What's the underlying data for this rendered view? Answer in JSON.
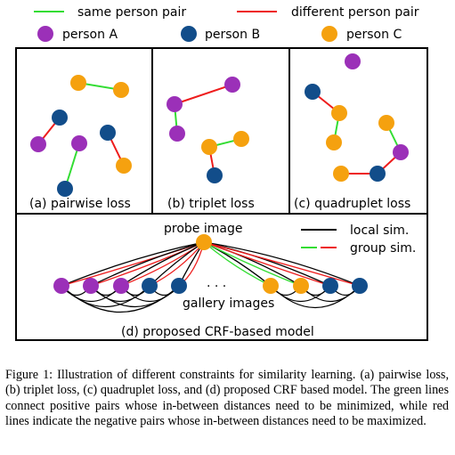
{
  "colors": {
    "same_pair": "#33dd33",
    "different_pair": "#ee1c1c",
    "person_a": "#9b30b8",
    "person_b": "#124d8a",
    "person_c": "#f5a10f",
    "local_sim": "#000000"
  },
  "legend": {
    "same_pair": "same person pair",
    "different_pair": "different person pair",
    "person_a": "person A",
    "person_b": "person B",
    "person_c": "person C"
  },
  "panels": {
    "pairwise": "(a) pairwise loss",
    "triplet": "(b) triplet loss",
    "quadruplet": "(c) quadruplet loss"
  },
  "crf": {
    "probe": "probe image",
    "dots": "·   ·   ·",
    "gallery": "gallery images",
    "title": "(d) proposed CRF-based model",
    "local_sim": "local sim.",
    "group_sim": "group sim."
  },
  "caption": "Figure 1: Illustration of different constraints for similarity learning. (a) pairwise loss, (b) triplet loss, (c) quadruplet loss, and (d) proposed CRF based model. The green lines connect positive pairs whose in-between distances need to be minimized, while red lines indicate the negative pairs whose in-between distances need to be maximized."
}
